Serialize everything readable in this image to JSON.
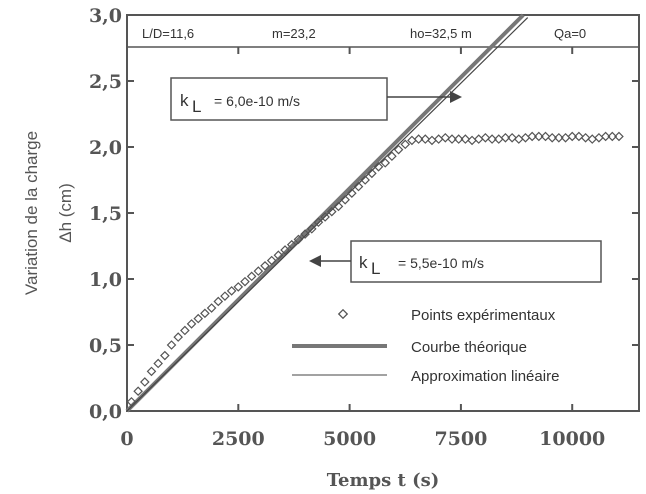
{
  "chart_data": {
    "type": "scatter",
    "header": {
      "items": [
        "L/D=11,6",
        "m=23,2",
        "ho=32,5  m",
        "Qa=0"
      ]
    },
    "xlabel": "Temps t  (s)",
    "ylabel_line1": "Variation de la charge",
    "ylabel_line2": "Δh (cm)",
    "xlim": [
      0,
      11500
    ],
    "ylim": [
      0,
      3.0
    ],
    "xticks": [
      0,
      2500,
      5000,
      7500,
      10000
    ],
    "xtick_labels": [
      "0",
      "2500",
      "5000",
      "7500",
      "10000"
    ],
    "yticks": [
      0,
      0.5,
      1.0,
      1.5,
      2.0,
      2.5,
      3.0
    ],
    "ytick_labels": [
      "0,0",
      "0,5",
      "1,0",
      "1,5",
      "2,0",
      "2,5",
      "3,0"
    ],
    "annotations": [
      {
        "k": "k",
        "sub": "L",
        "text": "=   6,0e-10   m/s",
        "target": [
          7800,
          2.62
        ]
      },
      {
        "k": "k",
        "sub": "L",
        "text": "=   5,5e-10   m/s",
        "target": [
          3800,
          1.2
        ]
      }
    ],
    "legend": {
      "placement": "bottom-right",
      "entries": [
        "Points  expérimentaux",
        "Courbe  théorique",
        "Approximation  linéaire"
      ]
    },
    "series": [
      {
        "name": "Points  expérimentaux",
        "style": "diamond",
        "x": [
          100,
          250,
          400,
          550,
          700,
          850,
          1000,
          1150,
          1300,
          1450,
          1600,
          1750,
          1900,
          2050,
          2200,
          2350,
          2500,
          2650,
          2800,
          2950,
          3100,
          3250,
          3400,
          3550,
          3700,
          3850,
          4000,
          4150,
          4300,
          4450,
          4600,
          4750,
          4900,
          5050,
          5200,
          5350,
          5500,
          5650,
          5800,
          5950,
          6100,
          6250,
          6400,
          6550,
          6700,
          6850,
          7000,
          7150,
          7300,
          7450,
          7600,
          7750,
          7900,
          8050,
          8200,
          8350,
          8500,
          8650,
          8800,
          8950,
          9100,
          9250,
          9400,
          9550,
          9700,
          9850,
          10000,
          10150,
          10300,
          10450,
          10600,
          10750,
          10900,
          11050
        ],
        "y": [
          0.07,
          0.15,
          0.22,
          0.3,
          0.36,
          0.42,
          0.5,
          0.56,
          0.61,
          0.66,
          0.7,
          0.74,
          0.78,
          0.83,
          0.87,
          0.91,
          0.94,
          0.98,
          1.02,
          1.06,
          1.1,
          1.14,
          1.18,
          1.22,
          1.26,
          1.3,
          1.34,
          1.38,
          1.43,
          1.47,
          1.51,
          1.55,
          1.6,
          1.65,
          1.7,
          1.75,
          1.8,
          1.85,
          1.88,
          1.93,
          1.98,
          2.02,
          2.05,
          2.06,
          2.06,
          2.05,
          2.06,
          2.07,
          2.06,
          2.06,
          2.06,
          2.05,
          2.06,
          2.07,
          2.06,
          2.06,
          2.07,
          2.07,
          2.06,
          2.07,
          2.08,
          2.08,
          2.08,
          2.07,
          2.07,
          2.07,
          2.08,
          2.08,
          2.07,
          2.06,
          2.07,
          2.08,
          2.08,
          2.08
        ]
      },
      {
        "name": "Courbe  théorique",
        "style": "thick-line",
        "x": [
          0,
          8900
        ],
        "y": [
          0,
          3.0
        ]
      },
      {
        "name": "Approximation  linéaire",
        "style": "thin-line",
        "x": [
          0,
          9000
        ],
        "y": [
          0,
          2.98
        ]
      }
    ],
    "grid": false,
    "colors": {
      "thick": "#777777",
      "thin": "#444444",
      "markers": "#555555",
      "frame": "#555555"
    }
  }
}
